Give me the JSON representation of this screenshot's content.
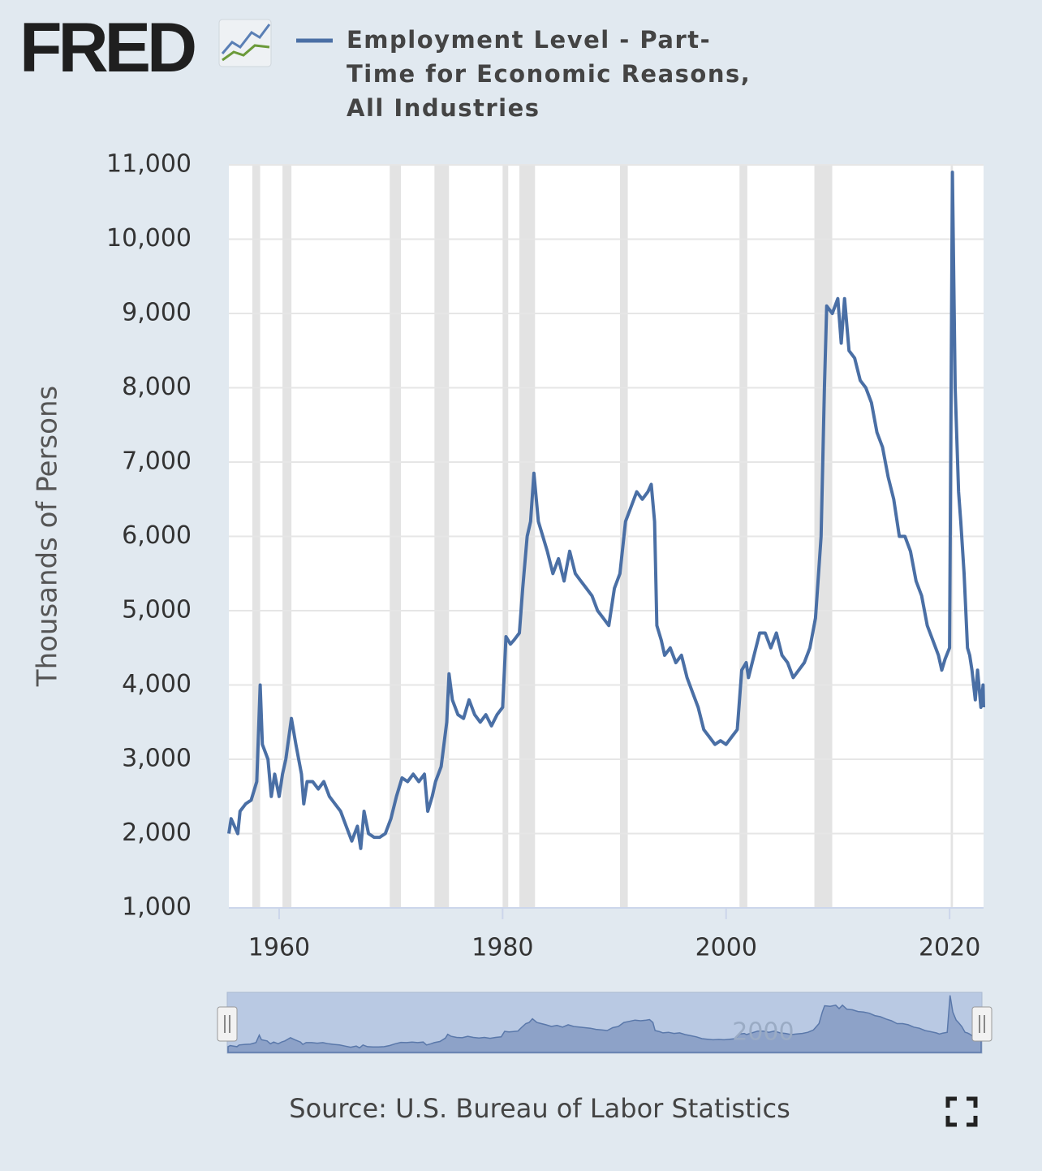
{
  "logo": "FRED",
  "chart_data": {
    "type": "line",
    "y_label": "Thousands of Persons",
    "source": "Source: U.S. Bureau of Labor Statistics",
    "xlim": [
      1955.5,
      2023.04
    ],
    "xticks": [
      1960,
      1980,
      2000,
      2020
    ],
    "ylim": [
      1000,
      11000
    ],
    "yticks": [
      {
        "value": 1000,
        "label": "1,000"
      },
      {
        "value": 2000,
        "label": "2,000"
      },
      {
        "value": 3000,
        "label": "3,000"
      },
      {
        "value": 4000,
        "label": "4,000"
      },
      {
        "value": 5000,
        "label": "5,000"
      },
      {
        "value": 6000,
        "label": "6,000"
      },
      {
        "value": 7000,
        "label": "7,000"
      },
      {
        "value": 8000,
        "label": "8,000"
      },
      {
        "value": 9000,
        "label": "9,000"
      },
      {
        "value": 10000,
        "label": "10,000"
      },
      {
        "value": 11000,
        "label": "11,000"
      }
    ],
    "grid": true,
    "recessions": [
      [
        1957.6,
        1958.3
      ],
      [
        1960.3,
        1961.1
      ],
      [
        1969.9,
        1970.9
      ],
      [
        1973.9,
        1975.2
      ],
      [
        1980.0,
        1980.5
      ],
      [
        1981.5,
        1982.9
      ],
      [
        1990.5,
        1991.2
      ],
      [
        2001.2,
        2001.9
      ],
      [
        2007.9,
        2009.5
      ],
      [
        2020.1,
        2020.3
      ]
    ],
    "navigator_xticks": [
      2000
    ],
    "x": [
      1955.5,
      1955.7,
      1956,
      1956.3,
      1956.5,
      1957,
      1957.5,
      1958,
      1958.3,
      1958.5,
      1959,
      1959.3,
      1959.6,
      1960,
      1960.3,
      1960.6,
      1961.1,
      1961.5,
      1962,
      1962.2,
      1962.5,
      1963,
      1963.5,
      1964,
      1964.5,
      1965,
      1965.5,
      1966,
      1966.5,
      1967,
      1967.3,
      1967.6,
      1968,
      1968.5,
      1969,
      1969.5,
      1970,
      1970.5,
      1971,
      1971.5,
      1972,
      1972.5,
      1973,
      1973.3,
      1973.7,
      1974,
      1974.5,
      1975,
      1975.2,
      1975.5,
      1976,
      1976.5,
      1977,
      1977.5,
      1978,
      1978.5,
      1979,
      1979.5,
      1980,
      1980.3,
      1980.7,
      1981,
      1981.5,
      1981.8,
      1982.2,
      1982.5,
      1982.8,
      1983.2,
      1983.6,
      1984,
      1984.5,
      1985,
      1985.5,
      1986,
      1986.5,
      1987,
      1987.5,
      1988,
      1988.5,
      1989,
      1989.5,
      1990,
      1990.5,
      1991,
      1991.5,
      1992,
      1992.5,
      1993,
      1993.3,
      1993.6,
      1993.8,
      1994.2,
      1994.5,
      1995,
      1995.5,
      1996,
      1996.5,
      1997,
      1997.5,
      1998,
      1998.5,
      1999,
      1999.5,
      2000,
      2000.5,
      2001,
      2001.4,
      2001.8,
      2002,
      2002.5,
      2003,
      2003.5,
      2004,
      2004.5,
      2005,
      2005.5,
      2006,
      2006.5,
      2007,
      2007.5,
      2008,
      2008.5,
      2008.8,
      2009,
      2009.5,
      2010,
      2010.3,
      2010.6,
      2011,
      2011.5,
      2012,
      2012.5,
      2013,
      2013.5,
      2014,
      2014.5,
      2015,
      2015.5,
      2016,
      2016.5,
      2017,
      2017.5,
      2018,
      2018.5,
      2019,
      2019.3,
      2019.6,
      2020,
      2020.25,
      2020.5,
      2020.8,
      2021,
      2021.3,
      2021.6,
      2021.8,
      2022,
      2022.3,
      2022.5,
      2022.8,
      2023,
      2023.04
    ],
    "series": [
      {
        "name": "Employment Level - Part-Time for Economic Reasons, All Industries",
        "color": "#4a6fa5",
        "values": [
          2000,
          2200,
          2100,
          2000,
          2300,
          2400,
          2450,
          2700,
          4000,
          3200,
          3000,
          2500,
          2800,
          2500,
          2800,
          3000,
          3550,
          3200,
          2800,
          2400,
          2700,
          2700,
          2600,
          2700,
          2500,
          2400,
          2300,
          2100,
          1900,
          2100,
          1800,
          2300,
          2000,
          1950,
          1950,
          2000,
          2200,
          2500,
          2750,
          2700,
          2800,
          2700,
          2800,
          2300,
          2500,
          2700,
          2900,
          3500,
          4150,
          3800,
          3600,
          3550,
          3800,
          3600,
          3500,
          3600,
          3450,
          3600,
          3700,
          4650,
          4550,
          4600,
          4700,
          5300,
          6000,
          6200,
          6850,
          6200,
          6000,
          5800,
          5500,
          5700,
          5400,
          5800,
          5500,
          5400,
          5300,
          5200,
          5000,
          4900,
          4800,
          5300,
          5500,
          6200,
          6400,
          6600,
          6500,
          6600,
          6700,
          6200,
          4800,
          4600,
          4400,
          4500,
          4300,
          4400,
          4100,
          3900,
          3700,
          3400,
          3300,
          3200,
          3250,
          3200,
          3300,
          3400,
          4200,
          4300,
          4100,
          4400,
          4700,
          4700,
          4500,
          4700,
          4400,
          4300,
          4100,
          4200,
          4300,
          4500,
          4900,
          6000,
          8000,
          9100,
          9000,
          9200,
          8600,
          9200,
          8500,
          8400,
          8100,
          8000,
          7800,
          7400,
          7200,
          6800,
          6500,
          6000,
          6000,
          5800,
          5400,
          5200,
          4800,
          4600,
          4400,
          4200,
          4350,
          4500,
          10900,
          8000,
          6600,
          6200,
          5500,
          4500,
          4400,
          4200,
          3800,
          4200,
          3700,
          4000,
          3700
        ]
      }
    ]
  }
}
